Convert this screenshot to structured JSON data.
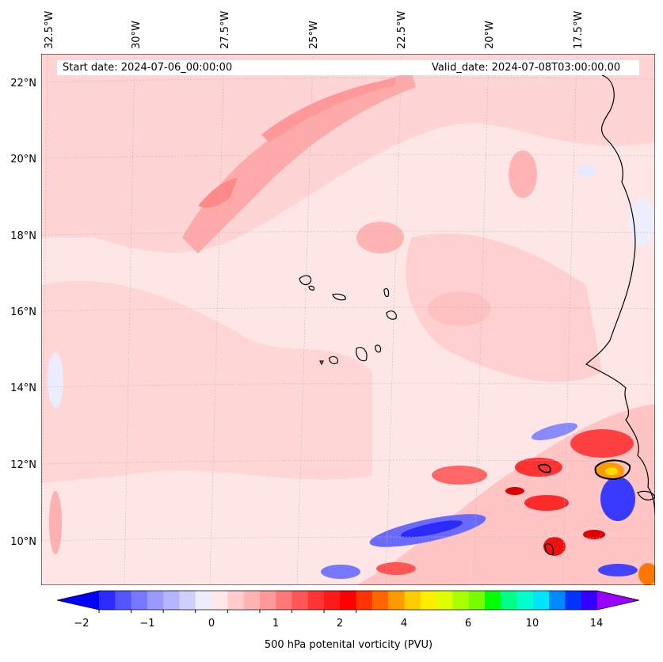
{
  "header": {
    "start_date": "Start date: 2024-07-06_00:00:00",
    "valid_date": "Valid_date: 2024-07-08T03:00:00.00"
  },
  "axes": {
    "lon_labels": [
      "32.5°W",
      "30°W",
      "27.5°W",
      "25°W",
      "22.5°W",
      "20°W",
      "17.5°W"
    ],
    "lat_labels": [
      "22°N",
      "20°N",
      "18°N",
      "16°N",
      "14°N",
      "12°N",
      "10°N"
    ]
  },
  "colorbar": {
    "label": "500 hPa potenital vorticity (PVU)",
    "ticks": [
      "−2",
      "−1",
      "0",
      "1",
      "2",
      "4",
      "6",
      "10",
      "14"
    ],
    "colors": [
      "#0000ff",
      "#2b2bff",
      "#5555ff",
      "#7777ff",
      "#9999ff",
      "#b3b3ff",
      "#d0d0ff",
      "#eeeeff",
      "#ffe8e8",
      "#ffcccc",
      "#ffb3b3",
      "#ff9999",
      "#ff7777",
      "#ff5555",
      "#ff3333",
      "#ff1a1a",
      "#ff0000",
      "#ff3300",
      "#ff6600",
      "#ff9900",
      "#ffcc00",
      "#ffee00",
      "#ddff00",
      "#aaff00",
      "#77ff00",
      "#00ff00",
      "#00ff88",
      "#00ffcc",
      "#00e5ff",
      "#0088ff",
      "#0033ff",
      "#3300ff",
      "#9900ff"
    ]
  },
  "map": {
    "background_color": "#ffe6e6"
  }
}
